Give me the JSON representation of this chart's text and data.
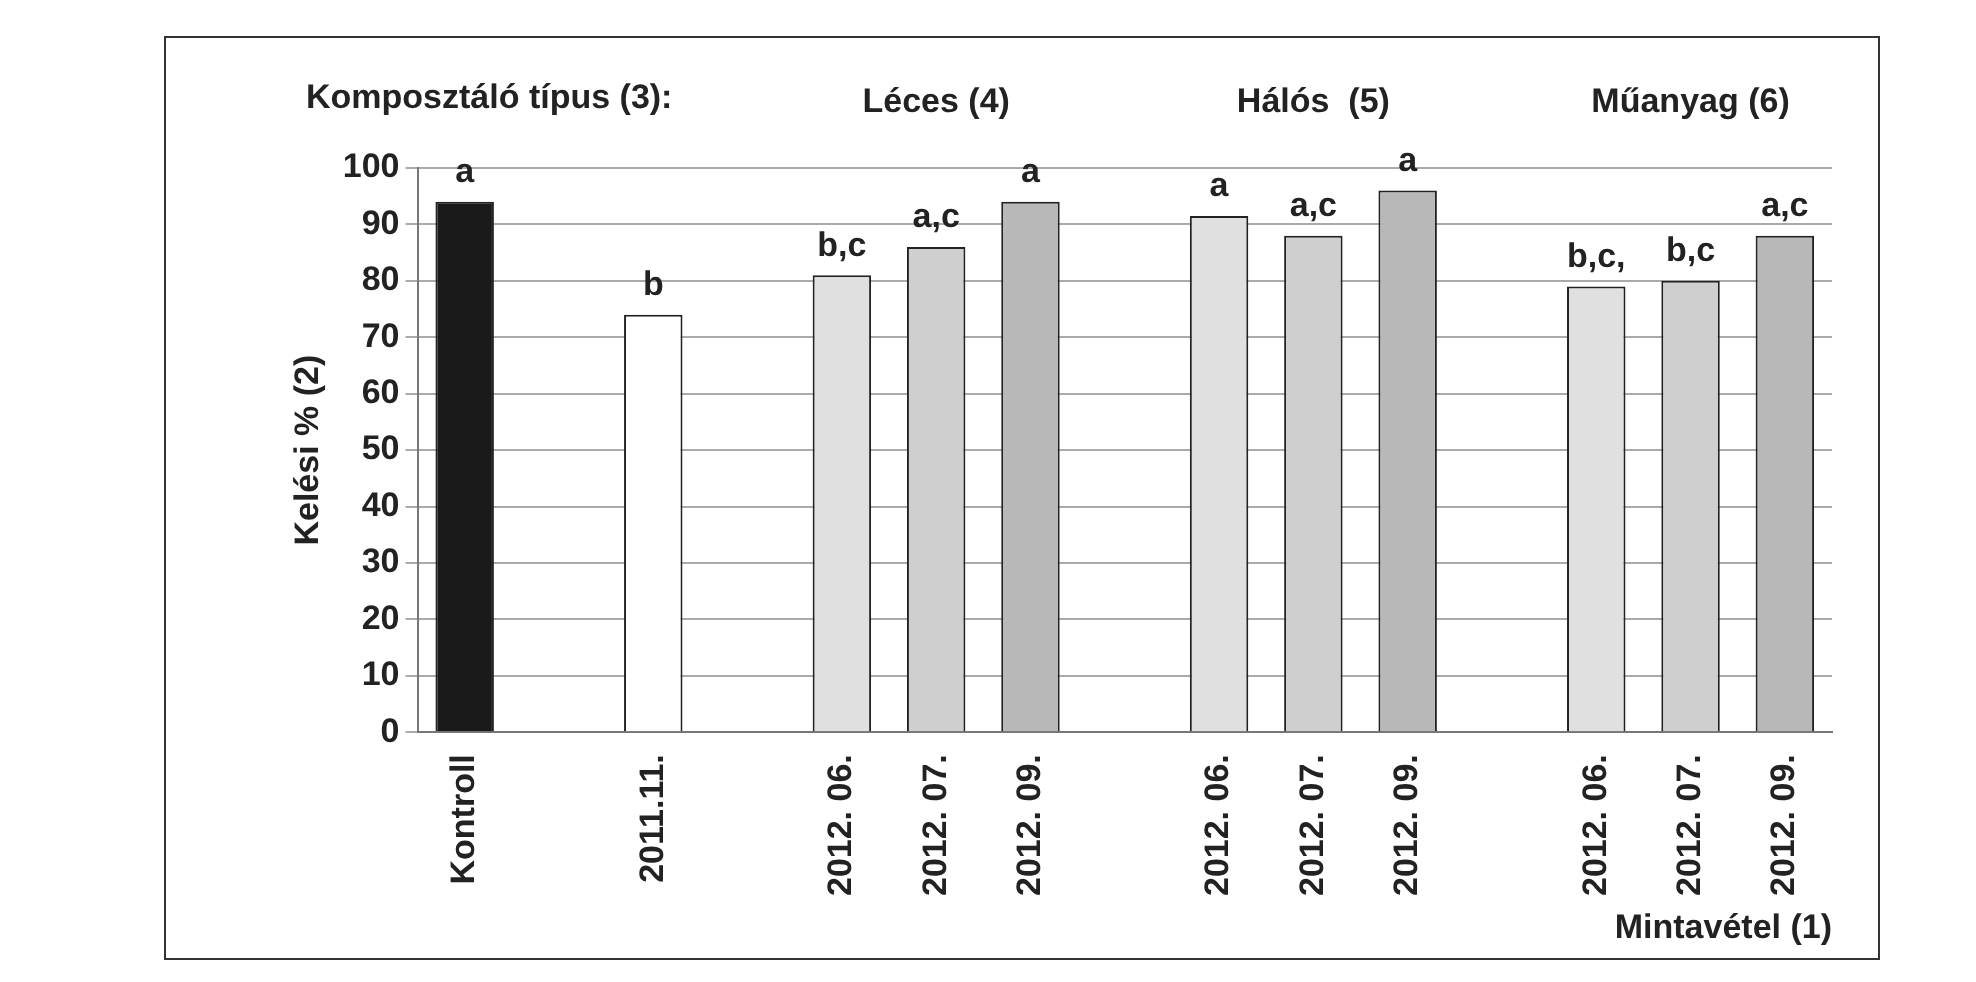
{
  "chart_data": {
    "type": "bar",
    "ylabel": "Kelési % (2)",
    "xlabel": "Mintavétel (1)",
    "annotations": [
      "Komposztáló típus (3):",
      "Léces (4)",
      "Hálós  (5)",
      "Műanyag (6)"
    ],
    "categories": [
      "Kontroll",
      null,
      "2011.11.",
      null,
      "2012. 06.",
      "2012. 07.",
      "2012. 09.",
      null,
      "2012. 06.",
      "2012. 07.",
      "2012. 09.",
      null,
      "2012. 06.",
      "2012. 07.",
      "2012. 09."
    ],
    "values": [
      94,
      null,
      74,
      null,
      81,
      86,
      94,
      null,
      91.5,
      88,
      96,
      null,
      79,
      80,
      88
    ],
    "colors": [
      "#1a1a1a",
      "#ffffff",
      "#ffffff",
      "#ffffff",
      "#e0e0e0",
      "#cfcfcf",
      "#b8b8b8",
      "#ffffff",
      "#e0e0e0",
      "#cfcfcf",
      "#b8b8b8",
      "#ffffff",
      "#e0e0e0",
      "#cfcfcf",
      "#b8b8b8"
    ],
    "value_labels": [
      "a",
      null,
      "b",
      null,
      "b,c",
      "a,c",
      "a",
      null,
      "a",
      "a,c",
      "a",
      null,
      "b,c,",
      "b,c",
      "a,c"
    ],
    "ylim": [
      0,
      100
    ],
    "yticks": [
      0,
      10,
      20,
      30,
      40,
      50,
      60,
      70,
      80,
      90,
      100
    ],
    "grid": "y",
    "legend": false
  }
}
